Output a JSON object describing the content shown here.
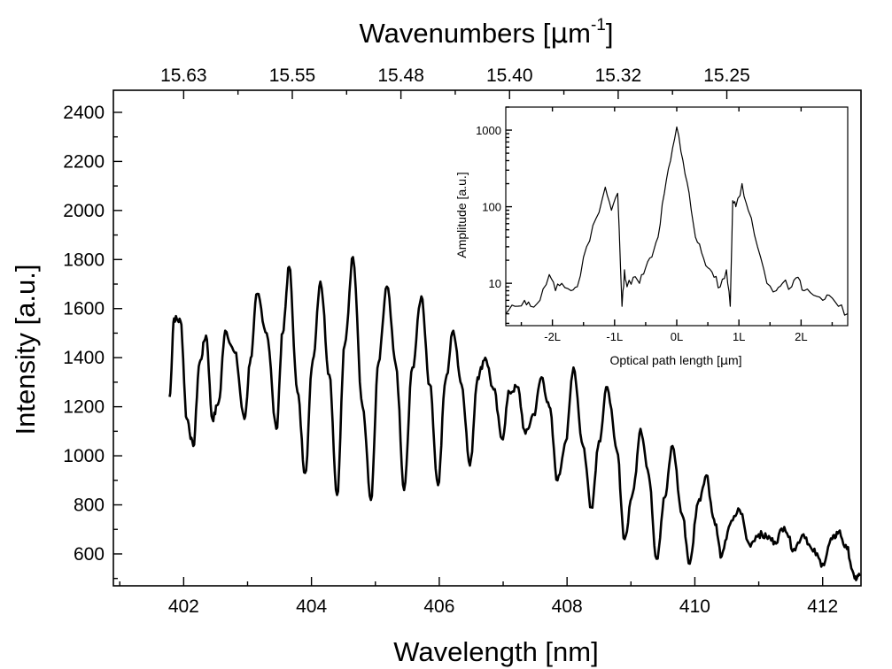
{
  "chart_data": [
    {
      "type": "line",
      "title": "",
      "xlabel": "Wavelength [nm]",
      "ylabel": "Intensity [a.u.]",
      "top_axis": {
        "label_main": "Wavenumbers [",
        "label_mu": "μ",
        "label_unit": "m",
        "label_sup": "-1",
        "label_close": "]",
        "tick_labels": [
          "15.63",
          "15.55",
          "15.48",
          "15.40",
          "15.32",
          "15.25"
        ],
        "tick_positions": [
          402,
          403.7,
          405.4,
          407.1,
          408.8,
          410.5
        ]
      },
      "xlim": [
        400.9,
        412.6
      ],
      "ylim": [
        470,
        2490
      ],
      "xticks": [
        402,
        404,
        406,
        408,
        410,
        412
      ],
      "yticks": [
        600,
        800,
        1000,
        1200,
        1400,
        1600,
        1800,
        2000,
        2200,
        2400
      ],
      "grid": false,
      "legend": "none",
      "series": [
        {
          "x": [
            401.78,
            401.85,
            401.95,
            402.05,
            402.15,
            402.25,
            402.35,
            402.45,
            402.55,
            402.65,
            402.8,
            402.95,
            403.05,
            403.15,
            403.3,
            403.45,
            403.55,
            403.65,
            403.78,
            403.9,
            404.02,
            404.14,
            404.28,
            404.4,
            404.52,
            404.65,
            404.8,
            404.93,
            405.05,
            405.18,
            405.32,
            405.45,
            405.58,
            405.72,
            405.85,
            405.98,
            406.1,
            406.22,
            406.35,
            406.48,
            406.6,
            406.72,
            406.85,
            406.98,
            407.1,
            407.22,
            407.35,
            407.48,
            407.6,
            407.72,
            407.85,
            407.98,
            408.1,
            408.25,
            408.38,
            408.5,
            408.63,
            408.78,
            408.9,
            409.03,
            409.15,
            409.28,
            409.4,
            409.53,
            409.65,
            409.8,
            409.92,
            410.05,
            410.18,
            410.3,
            410.42,
            410.55,
            410.7,
            410.85,
            411.0,
            411.12,
            411.25,
            411.4,
            411.55,
            411.7,
            411.85,
            412.0,
            412.15,
            412.25,
            412.38,
            412.5,
            412.58
          ],
          "y": [
            1240,
            1560,
            1550,
            1150,
            1040,
            1380,
            1490,
            1150,
            1220,
            1510,
            1420,
            1150,
            1400,
            1660,
            1500,
            1110,
            1500,
            1770,
            1260,
            930,
            1390,
            1710,
            1330,
            840,
            1450,
            1810,
            1200,
            820,
            1380,
            1690,
            1370,
            860,
            1360,
            1650,
            1290,
            880,
            1310,
            1510,
            1290,
            960,
            1320,
            1400,
            1270,
            1070,
            1260,
            1280,
            1090,
            1170,
            1320,
            1200,
            900,
            1060,
            1360,
            1040,
            790,
            1060,
            1280,
            1020,
            660,
            850,
            1110,
            920,
            580,
            830,
            1040,
            760,
            560,
            810,
            920,
            740,
            590,
            720,
            780,
            640,
            680,
            670,
            650,
            710,
            620,
            680,
            610,
            560,
            660,
            690,
            620,
            500,
            510
          ]
        }
      ]
    },
    {
      "type": "line",
      "title": "",
      "xlabel_main": "Optical path length [",
      "xlabel_mu": "μ",
      "xlabel_unit": "m]",
      "ylabel": "Amplitude [a.u.]",
      "yscale": "log",
      "xlim": [
        -2.75,
        2.75
      ],
      "ylim": [
        2.8,
        2000
      ],
      "xticks": [
        -2,
        -1,
        0,
        1,
        2
      ],
      "xtick_labels": [
        "-2L",
        "-1L",
        "0L",
        "1L",
        "2L"
      ],
      "yticks": [
        10,
        100,
        1000
      ],
      "ytick_labels": [
        "10",
        "100",
        "1000"
      ],
      "grid": false,
      "legend": "none",
      "series": [
        {
          "x": [
            -2.75,
            -2.6,
            -2.45,
            -2.35,
            -2.2,
            -2.05,
            -1.95,
            -1.85,
            -1.7,
            -1.6,
            -1.45,
            -1.3,
            -1.15,
            -1.05,
            -0.95,
            -0.88,
            -0.84,
            -0.8,
            -0.7,
            -0.6,
            -0.5,
            -0.4,
            -0.3,
            -0.2,
            -0.1,
            0.0,
            0.1,
            0.2,
            0.3,
            0.4,
            0.5,
            0.6,
            0.7,
            0.8,
            0.86,
            0.9,
            0.95,
            1.05,
            1.15,
            1.3,
            1.45,
            1.6,
            1.7,
            1.85,
            1.95,
            2.05,
            2.2,
            2.35,
            2.45,
            2.6,
            2.75
          ],
          "y": [
            4,
            5,
            6,
            5,
            6,
            13,
            8,
            10,
            8,
            9,
            30,
            70,
            180,
            90,
            150,
            5,
            15,
            9,
            12,
            10,
            16,
            22,
            40,
            150,
            400,
            1100,
            400,
            150,
            40,
            25,
            16,
            12,
            9,
            15,
            5,
            120,
            100,
            200,
            90,
            30,
            10,
            8,
            10,
            9,
            12,
            8,
            7,
            6,
            7,
            5,
            4
          ]
        }
      ]
    }
  ]
}
